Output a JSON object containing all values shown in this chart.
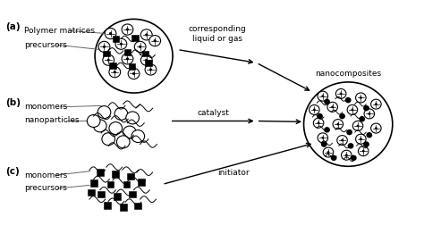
{
  "fig_width": 4.74,
  "fig_height": 2.71,
  "dpi": 100,
  "bg_color": "#ffffff",
  "text_color": "#000000",
  "labels": {
    "a": "(a)",
    "b": "(b)",
    "c": "(c)",
    "polymer_matrices": "Polymer matrices",
    "precursors_a": "precursors",
    "monomers_b": "monomers",
    "nanoparticles_b": "nanoparticles",
    "monomers_c": "monomers",
    "precursors_c": "precursors",
    "liquid_gas": "corresponding\nliquid or gas",
    "catalyst": "catalyst",
    "initiator": "initiator",
    "nanocomposites": "nanocomposites"
  },
  "font_size_label": 7.5,
  "font_size_small": 6.5,
  "font_size_tiny": 5.5
}
